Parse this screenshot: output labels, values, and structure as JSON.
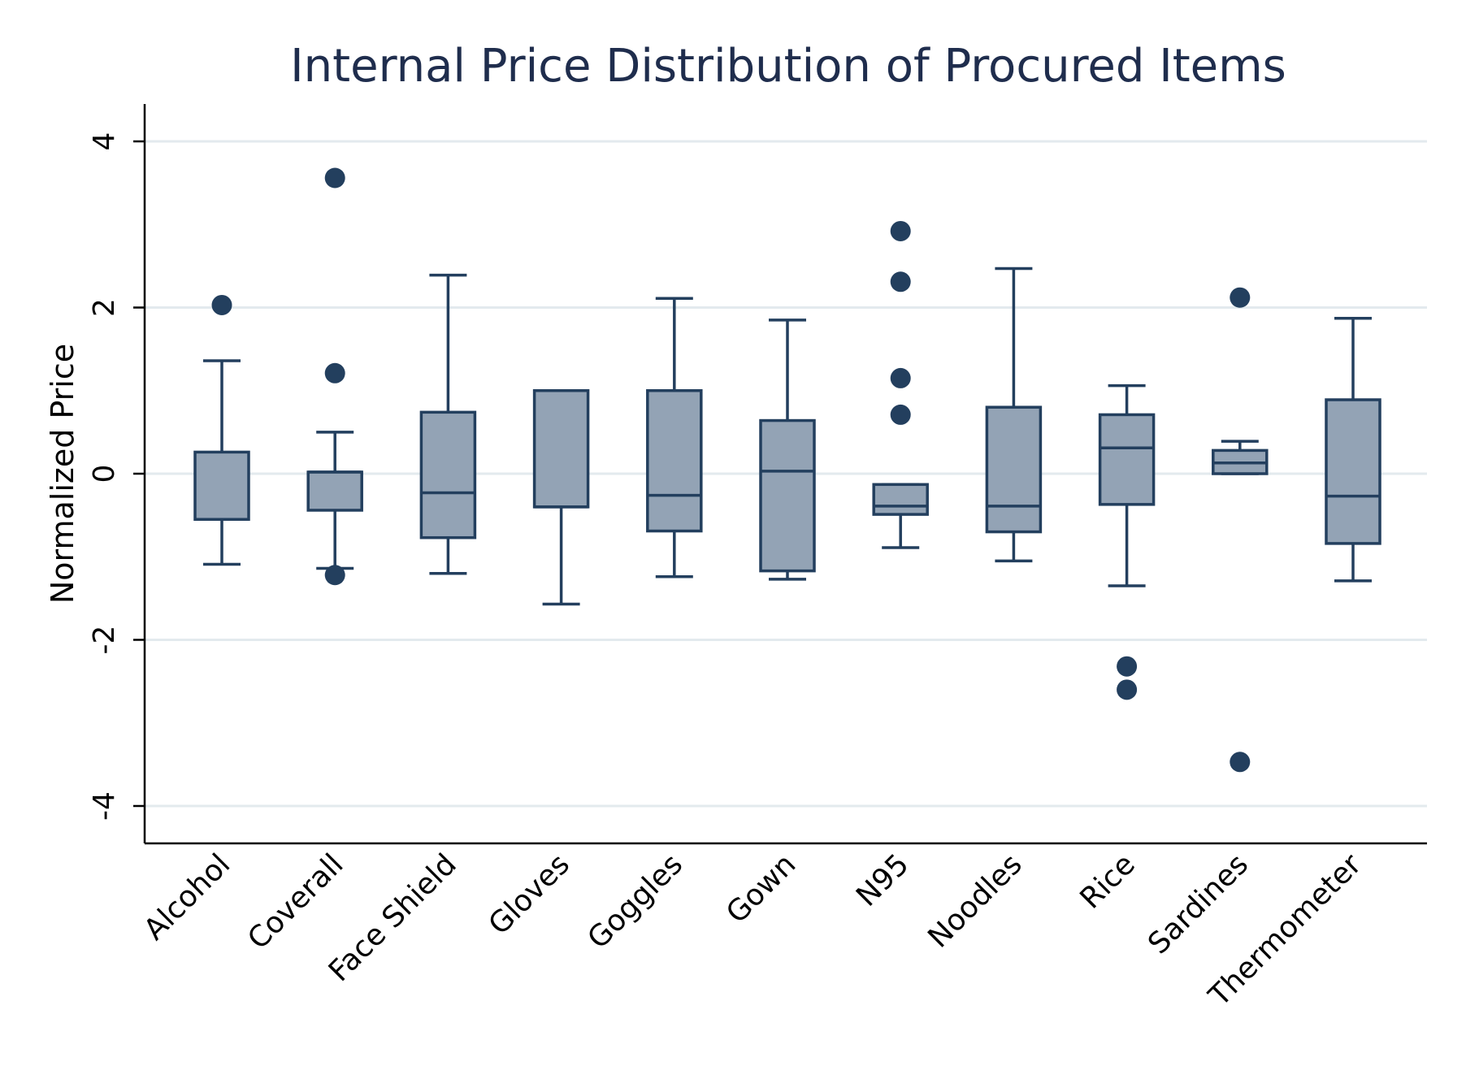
{
  "chart_data": {
    "type": "box",
    "title": "Internal Price Distribution of Procured Items",
    "xlabel": "",
    "ylabel": "Normalized Price",
    "ylim": [
      -4.45,
      4.45
    ],
    "yticks": [
      {
        "value": -4,
        "label": "-4"
      },
      {
        "value": -2,
        "label": "-2"
      },
      {
        "value": 0,
        "label": "0"
      },
      {
        "value": 2,
        "label": "2"
      },
      {
        "value": 4,
        "label": "4"
      }
    ],
    "grid": true,
    "colors": {
      "box_fill": "#93a3b5",
      "box_stroke": "#233f5e",
      "outlier": "#233f5e",
      "grid": "#e3eaee",
      "title": "#1f2d4d"
    },
    "categories": [
      "Alcohol",
      "Coverall",
      "Face Shield",
      "Gloves",
      "Goggles",
      "Gown",
      "N95",
      "Noodles",
      "Rice",
      "Sardines",
      "Thermometer"
    ],
    "boxes": [
      {
        "label": "Alcohol",
        "min": -1.09,
        "q1": -0.55,
        "median": -0.55,
        "q3": 0.26,
        "max": 1.36,
        "outliers": [
          2.03
        ]
      },
      {
        "label": "Coverall",
        "min": -1.14,
        "q1": -0.44,
        "median": 0.02,
        "q3": 0.02,
        "max": 0.5,
        "outliers": [
          3.56,
          1.21,
          -1.22
        ]
      },
      {
        "label": "Face Shield",
        "min": -1.2,
        "q1": -0.77,
        "median": -0.23,
        "q3": 0.74,
        "max": 2.39,
        "outliers": []
      },
      {
        "label": "Gloves",
        "min": -1.57,
        "q1": -0.4,
        "median": -0.4,
        "q3": 1.0,
        "max": 1.0,
        "outliers": []
      },
      {
        "label": "Goggles",
        "min": -1.24,
        "q1": -0.69,
        "median": -0.26,
        "q3": 1.0,
        "max": 2.11,
        "outliers": []
      },
      {
        "label": "Gown",
        "min": -1.27,
        "q1": -1.17,
        "median": 0.03,
        "q3": 0.64,
        "max": 1.85,
        "outliers": []
      },
      {
        "label": "N95",
        "min": -0.89,
        "q1": -0.49,
        "median": -0.39,
        "q3": -0.13,
        "max": -0.13,
        "outliers": [
          2.92,
          2.31,
          1.15,
          0.71
        ]
      },
      {
        "label": "Noodles",
        "min": -1.05,
        "q1": -0.7,
        "median": -0.39,
        "q3": 0.8,
        "max": 2.47,
        "outliers": []
      },
      {
        "label": "Rice",
        "min": -1.35,
        "q1": -0.37,
        "median": 0.31,
        "q3": 0.71,
        "max": 1.06,
        "outliers": [
          -2.32,
          -2.6
        ]
      },
      {
        "label": "Sardines",
        "min": 0.0,
        "q1": 0.0,
        "median": 0.13,
        "q3": 0.28,
        "max": 0.39,
        "outliers": [
          2.12,
          -3.47
        ]
      },
      {
        "label": "Thermometer",
        "min": -1.29,
        "q1": -0.84,
        "median": -0.27,
        "q3": 0.89,
        "max": 1.87,
        "outliers": []
      }
    ]
  }
}
